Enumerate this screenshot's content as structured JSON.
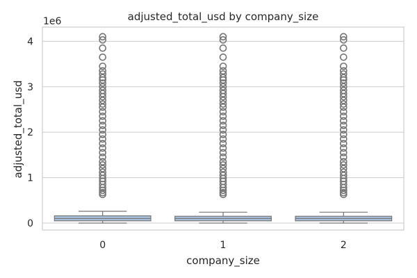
{
  "chart_data": {
    "type": "box",
    "title": "adjusted_total_usd by company_size",
    "xlabel": "company_size",
    "ylabel": "adjusted_total_usd",
    "offset_label": "1e6",
    "categories": [
      "0",
      "1",
      "2"
    ],
    "y_ticks": [
      0,
      1,
      2,
      3,
      4
    ],
    "ylim": [
      -0.2,
      4.3
    ],
    "grid": true,
    "box_color": "#a8bfdc",
    "edge_color": "#747474",
    "boxes": [
      {
        "category": "0",
        "whisker_low": 0.0,
        "q1": 0.05,
        "median": 0.1,
        "q3": 0.16,
        "whisker_high": 0.26,
        "outliers": [
          0.63,
          0.67,
          0.72,
          0.78,
          0.85,
          0.92,
          0.98,
          1.05,
          1.12,
          1.2,
          1.28,
          1.35,
          1.45,
          1.55,
          1.65,
          1.75,
          1.85,
          1.95,
          2.05,
          2.15,
          2.25,
          2.35,
          2.45,
          2.55,
          2.62,
          2.7,
          2.78,
          2.85,
          2.92,
          3.0,
          3.08,
          3.15,
          3.2,
          3.28,
          3.35,
          3.45,
          3.65,
          3.85,
          4.03,
          4.1
        ]
      },
      {
        "category": "1",
        "whisker_low": 0.0,
        "q1": 0.05,
        "median": 0.1,
        "q3": 0.15,
        "whisker_high": 0.24,
        "outliers": [
          0.63,
          0.67,
          0.72,
          0.78,
          0.85,
          0.92,
          0.98,
          1.05,
          1.12,
          1.2,
          1.28,
          1.35,
          1.45,
          1.55,
          1.65,
          1.75,
          1.85,
          1.95,
          2.05,
          2.15,
          2.25,
          2.35,
          2.45,
          2.55,
          2.62,
          2.7,
          2.78,
          2.85,
          2.92,
          3.0,
          3.08,
          3.15,
          3.2,
          3.28,
          3.35,
          3.45,
          3.65,
          3.85,
          4.03,
          4.1
        ]
      },
      {
        "category": "2",
        "whisker_low": 0.0,
        "q1": 0.05,
        "median": 0.1,
        "q3": 0.15,
        "whisker_high": 0.24,
        "outliers": [
          0.63,
          0.67,
          0.72,
          0.78,
          0.85,
          0.92,
          0.98,
          1.05,
          1.12,
          1.2,
          1.28,
          1.35,
          1.45,
          1.55,
          1.65,
          1.75,
          1.85,
          1.95,
          2.05,
          2.15,
          2.25,
          2.35,
          2.45,
          2.55,
          2.62,
          2.7,
          2.78,
          2.85,
          2.92,
          3.0,
          3.08,
          3.15,
          3.2,
          3.28,
          3.35,
          3.45,
          3.65,
          3.85,
          4.03,
          4.1
        ]
      }
    ]
  }
}
